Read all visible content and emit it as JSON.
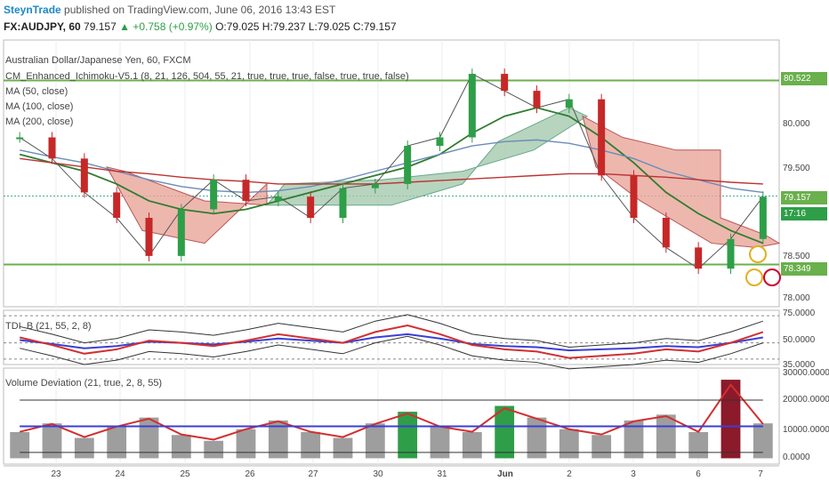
{
  "header": {
    "author": "SteynTrade",
    "published_text": "published on TradingView.com, June 06, 2016 13:43 EST",
    "symbol": "FX:AUDJPY, 60",
    "last": "79.157",
    "change": "+0.758 (+0.97%)",
    "ohlc": "O:79.025 H:79.237 L:79.025 C:79.157"
  },
  "legend": {
    "title": "Australian Dollar/Japanese Yen, 60, FXCM",
    "ichimoku": "CM_Enhanced_Ichimoku-V5.1 (8, 21, 126, 504, 55, 21, true, true, true, false, true, true, false)",
    "ma50": "MA (50, close)",
    "ma100": "MA (100, close)",
    "ma200": "MA (200, close)"
  },
  "tdi_label": "TDI_B (21, 55, 2, 8)",
  "vol_label": "Volume Deviation (21, true, 2, 8, 55)",
  "price_labels": {
    "top": "80.522",
    "current": "79.157",
    "timer": "17:16",
    "bottom": "78.349"
  },
  "colors": {
    "up": "#2e9e48",
    "down": "#c62828",
    "kumo_bear": "#e8a59a",
    "kumo_bull": "#a5c9ae",
    "level": "#6ab04c",
    "blue": "#3a3fd6",
    "red": "#d32f2f",
    "green": "#2f7d2f"
  },
  "chart_data": [
    {
      "type": "line",
      "title": "Australian Dollar/Japanese Yen, 60, FXCM",
      "x_ticks": [
        "23",
        "24",
        "25",
        "26",
        "27",
        "30",
        "31",
        "Jun",
        "2",
        "3",
        "6",
        "7"
      ],
      "y_ticks": [
        "80.522",
        "80.000",
        "79.500",
        "79.157",
        "78.500",
        "78.349",
        "78.000"
      ],
      "ylim": [
        77.85,
        81.0
      ],
      "levels": [
        80.522,
        78.349
      ],
      "series": [
        {
          "name": "MA (50, close)",
          "values": [
            79.65,
            79.55,
            79.45,
            79.3,
            79.1,
            79.0,
            78.95,
            79.0,
            79.1,
            79.2,
            79.3,
            79.4,
            79.5,
            79.65,
            79.9,
            80.1,
            80.2,
            80.1,
            79.85,
            79.55,
            79.2,
            78.95,
            78.75,
            78.6
          ]
        },
        {
          "name": "MA (100, close)",
          "values": [
            79.7,
            79.62,
            79.55,
            79.45,
            79.35,
            79.27,
            79.22,
            79.2,
            79.22,
            79.27,
            79.35,
            79.45,
            79.55,
            79.65,
            79.75,
            79.8,
            79.82,
            79.78,
            79.7,
            79.6,
            79.45,
            79.35,
            79.25,
            79.2
          ]
        },
        {
          "name": "MA (200, close)",
          "values": [
            79.6,
            79.55,
            79.5,
            79.45,
            79.42,
            79.38,
            79.35,
            79.33,
            79.3,
            79.3,
            79.3,
            79.3,
            79.32,
            79.34,
            79.36,
            79.38,
            79.4,
            79.42,
            79.42,
            79.4,
            79.38,
            79.35,
            79.32,
            79.3
          ]
        },
        {
          "name": "Close",
          "values": [
            79.85,
            79.6,
            79.2,
            78.9,
            78.45,
            79.0,
            79.35,
            79.1,
            79.15,
            78.9,
            79.25,
            79.3,
            79.75,
            79.85,
            80.6,
            80.4,
            80.2,
            80.3,
            79.4,
            78.9,
            78.55,
            78.3,
            78.65,
            79.15
          ]
        }
      ]
    },
    {
      "type": "line",
      "title": "TDI_B (21, 55, 2, 8)",
      "y_ticks": [
        "75.0000",
        "50.0000",
        "35.0000"
      ],
      "ylim": [
        30,
        80
      ],
      "series": [
        {
          "name": "TDI_B",
          "values": [
            55,
            48,
            40,
            44,
            52,
            50,
            47,
            52,
            58,
            54,
            50,
            60,
            66,
            58,
            48,
            44,
            42,
            36,
            38,
            40,
            44,
            42,
            50,
            60
          ]
        }
      ]
    },
    {
      "type": "bar",
      "title": "Volume Deviation (21, true, 2, 8, 55)",
      "y_ticks": [
        "30000.0000",
        "20000.0000",
        "10000.0000",
        "0.0000"
      ],
      "ylim": [
        -2000,
        31000
      ],
      "series": [
        {
          "name": "Volume",
          "values": [
            9000,
            12000,
            7000,
            11000,
            14000,
            8000,
            6000,
            10000,
            13000,
            9000,
            7000,
            12000,
            16000,
            11000,
            9000,
            18000,
            14000,
            10000,
            8000,
            13000,
            15000,
            9000,
            27000,
            12000
          ]
        }
      ]
    }
  ]
}
